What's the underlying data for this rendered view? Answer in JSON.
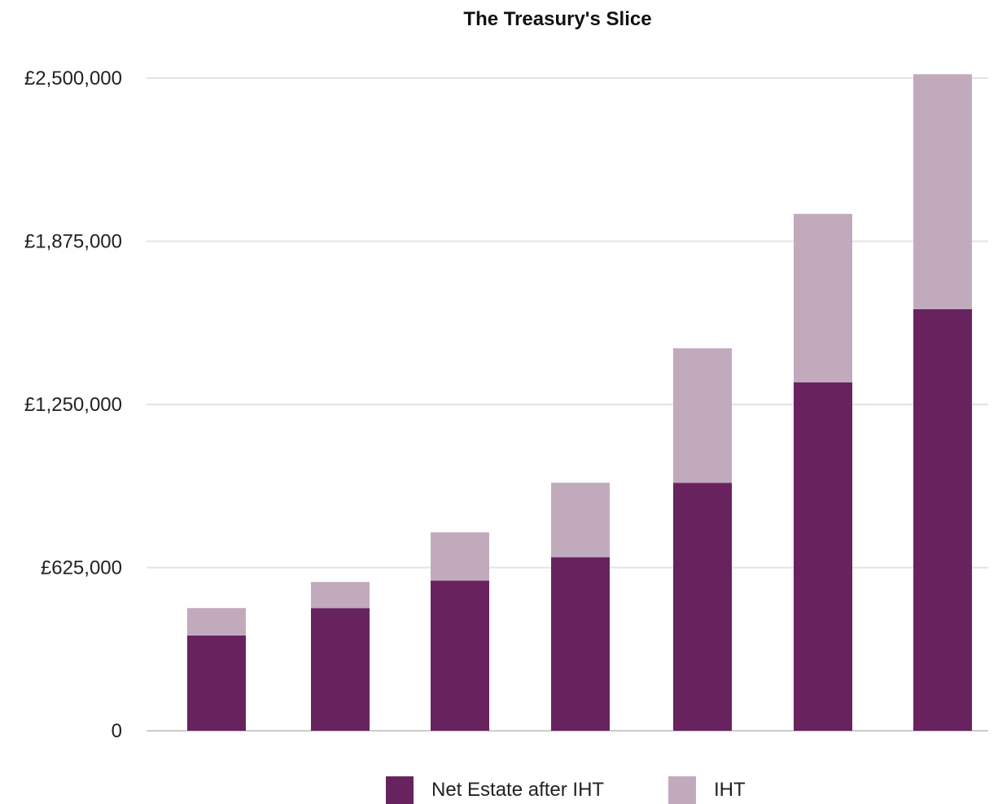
{
  "chart_data": {
    "type": "bar",
    "stacked": true,
    "title": "The Treasury's Slice",
    "xlabel": "",
    "ylabel": "",
    "ylim": [
      0,
      2500000
    ],
    "yticks": [
      0,
      625000,
      1250000,
      1875000,
      2500000
    ],
    "ytick_labels": [
      "0",
      "£625,000",
      "£1,250,000",
      "£1,875,000",
      "£2,500,000"
    ],
    "grid": true,
    "legend_position": "bottom-center",
    "categories": [
      "",
      "",
      "",
      "",
      "",
      "",
      ""
    ],
    "series": [
      {
        "name": "Net Estate after IHT",
        "color": "#68235f",
        "values": [
          365000,
          470000,
          575000,
          665000,
          950000,
          1335000,
          1615000
        ]
      },
      {
        "name": "IHT",
        "color": "#c2aabd",
        "values": [
          105000,
          100000,
          185000,
          285000,
          515000,
          645000,
          900000
        ]
      }
    ]
  }
}
